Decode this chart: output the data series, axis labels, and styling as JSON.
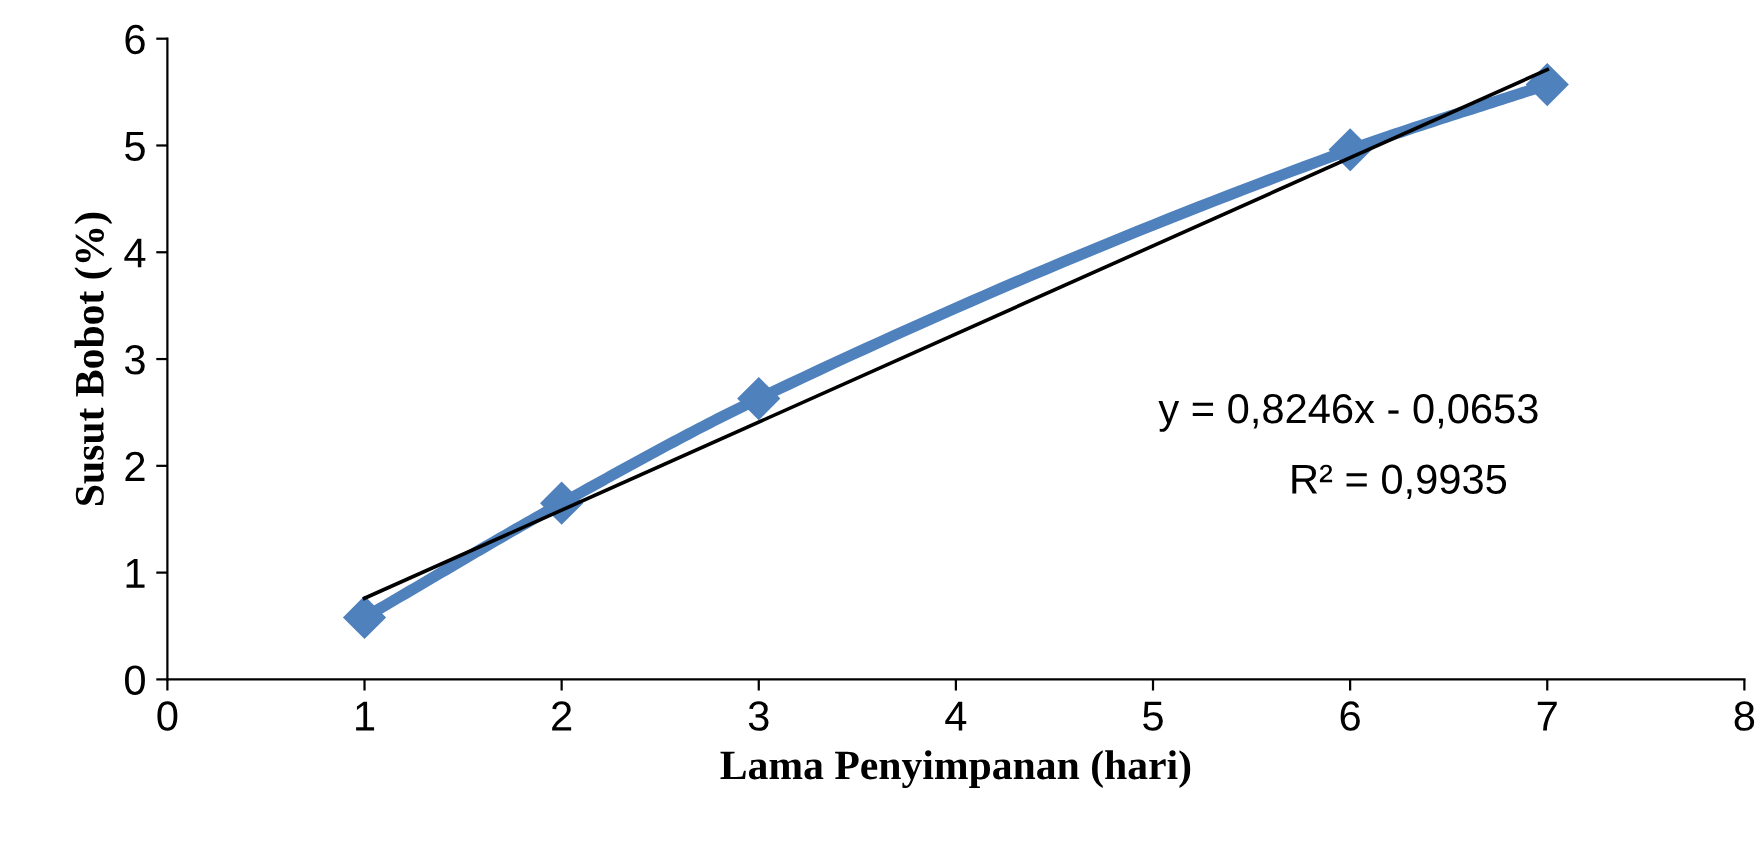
{
  "chart_data": {
    "type": "line",
    "xlabel": "Lama Penyimpanan (hari)",
    "ylabel": "Susut Bobot (%)",
    "x": [
      1,
      2,
      3,
      6,
      7
    ],
    "series": [
      {
        "color": "#4f81bd",
        "values": [
          0.58,
          1.65,
          2.63,
          4.96,
          5.57
        ],
        "marker": "diamond"
      },
      {
        "type": "line",
        "color": "#000000",
        "x": [
          1,
          7
        ],
        "values": [
          0.76,
          5.71
        ],
        "marker": "none"
      }
    ],
    "annotations": [
      "y = 0,8246x - 0,0653",
      "R² = 0,9935"
    ],
    "xlim": [
      0,
      8
    ],
    "xticks": [
      0,
      1,
      2,
      3,
      4,
      5,
      6,
      7,
      8
    ],
    "ylim": [
      0,
      6
    ],
    "yticks": [
      0,
      1,
      2,
      3,
      4,
      5,
      6
    ],
    "grid": false,
    "legend": false
  }
}
